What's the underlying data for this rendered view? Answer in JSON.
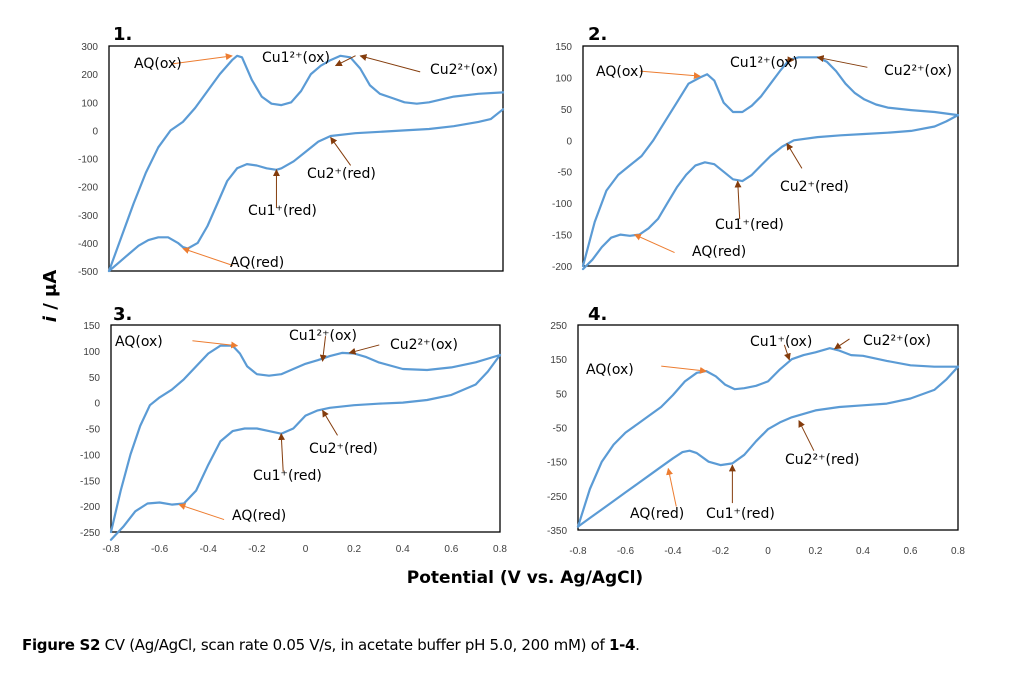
{
  "figure": {
    "xlabel": "Potential (V vs. Ag/AgCl)",
    "ylabel_italic": "i",
    "ylabel_rest": " / μA",
    "caption_bold": "Figure S2",
    "caption_text": " CV (Ag/AgCl, scan rate 0.05 V/s, in acetate buffer pH 5.0, 200 mM) of ",
    "caption_bold2": "1-4",
    "caption_end": ".",
    "colors": {
      "trace": "#5b9bd5",
      "arrow_orange": "#ed7d31",
      "arrow_brown": "#843c0c"
    }
  },
  "chart_data": [
    {
      "type": "line",
      "panel": "1.",
      "xlim": [
        -0.8,
        0.8
      ],
      "ylim": [
        -500,
        300
      ],
      "yticks": [
        300,
        200,
        100,
        0,
        -100,
        -200,
        -300,
        -400,
        -500
      ],
      "xticks": [],
      "series": [
        {
          "name": "forward",
          "x": [
            -0.8,
            -0.75,
            -0.7,
            -0.65,
            -0.6,
            -0.55,
            -0.5,
            -0.45,
            -0.4,
            -0.35,
            -0.3,
            -0.28,
            -0.26,
            -0.22,
            -0.18,
            -0.14,
            -0.1,
            -0.06,
            -0.02,
            0.02,
            0.06,
            0.1,
            0.14,
            0.18,
            0.22,
            0.26,
            0.3,
            0.35,
            0.4,
            0.45,
            0.5,
            0.55,
            0.6,
            0.7,
            0.8
          ],
          "y": [
            -500,
            -380,
            -260,
            -150,
            -60,
            0,
            30,
            80,
            140,
            200,
            250,
            265,
            260,
            180,
            120,
            95,
            90,
            100,
            140,
            200,
            230,
            250,
            265,
            260,
            220,
            160,
            130,
            115,
            100,
            95,
            100,
            110,
            120,
            130,
            135
          ]
        },
        {
          "name": "reverse",
          "x": [
            0.8,
            0.75,
            0.7,
            0.6,
            0.5,
            0.4,
            0.3,
            0.2,
            0.1,
            0.05,
            0.0,
            -0.05,
            -0.1,
            -0.12,
            -0.16,
            -0.2,
            -0.24,
            -0.28,
            -0.32,
            -0.36,
            -0.4,
            -0.44,
            -0.48,
            -0.5,
            -0.52,
            -0.56,
            -0.6,
            -0.64,
            -0.68,
            -0.72,
            -0.76,
            -0.8
          ],
          "y": [
            75,
            40,
            30,
            15,
            5,
            0,
            -5,
            -10,
            -20,
            -40,
            -75,
            -110,
            -135,
            -140,
            -135,
            -125,
            -120,
            -135,
            -180,
            -260,
            -340,
            -400,
            -420,
            -415,
            -400,
            -380,
            -380,
            -390,
            -410,
            -440,
            -470,
            -500
          ]
        }
      ],
      "annotations": [
        {
          "label": "AQ(ox)",
          "at": [
            -0.3,
            265
          ],
          "color": "orange"
        },
        {
          "label": "Cu1²⁺(ox)",
          "at": [
            0.12,
            230
          ],
          "color": "brown"
        },
        {
          "label": "Cu2²⁺(ox)",
          "at": [
            0.22,
            265
          ],
          "color": "brown"
        },
        {
          "label": "Cu2⁺(red)",
          "at": [
            0.1,
            -25
          ],
          "color": "brown"
        },
        {
          "label": "Cu1⁺(red)",
          "at": [
            -0.12,
            -140
          ],
          "color": "brown"
        },
        {
          "label": "AQ(red)",
          "at": [
            -0.5,
            -420
          ],
          "color": "orange"
        }
      ]
    },
    {
      "type": "line",
      "panel": "2.",
      "xlim": [
        -0.8,
        0.8
      ],
      "ylim": [
        -200,
        150
      ],
      "yticks": [
        150,
        100,
        50,
        0,
        -50,
        -100,
        -150,
        -200
      ],
      "xticks": [],
      "series": [
        {
          "name": "forward",
          "x": [
            -0.8,
            -0.75,
            -0.7,
            -0.65,
            -0.6,
            -0.55,
            -0.5,
            -0.45,
            -0.4,
            -0.35,
            -0.3,
            -0.27,
            -0.24,
            -0.2,
            -0.16,
            -0.12,
            -0.08,
            -0.04,
            0.0,
            0.04,
            0.08,
            0.12,
            0.16,
            0.2,
            0.24,
            0.28,
            0.32,
            0.36,
            0.4,
            0.45,
            0.5,
            0.55,
            0.6,
            0.7,
            0.8
          ],
          "y": [
            -200,
            -130,
            -80,
            -55,
            -40,
            -25,
            0,
            30,
            60,
            90,
            100,
            105,
            95,
            60,
            45,
            45,
            55,
            70,
            90,
            110,
            128,
            132,
            132,
            132,
            125,
            110,
            90,
            75,
            65,
            57,
            52,
            50,
            48,
            45,
            40
          ]
        },
        {
          "name": "reverse",
          "x": [
            0.8,
            0.75,
            0.7,
            0.6,
            0.5,
            0.4,
            0.3,
            0.2,
            0.1,
            0.05,
            0.0,
            -0.04,
            -0.08,
            -0.12,
            -0.16,
            -0.2,
            -0.24,
            -0.28,
            -0.32,
            -0.36,
            -0.4,
            -0.44,
            -0.48,
            -0.52,
            -0.56,
            -0.6,
            -0.64,
            -0.68,
            -0.72,
            -0.76,
            -0.8
          ],
          "y": [
            40,
            30,
            22,
            15,
            12,
            10,
            8,
            5,
            0,
            -10,
            -25,
            -40,
            -55,
            -65,
            -62,
            -50,
            -38,
            -35,
            -40,
            -55,
            -75,
            -100,
            -125,
            -140,
            -150,
            -152,
            -150,
            -155,
            -170,
            -190,
            -205
          ]
        }
      ],
      "annotations": [
        {
          "label": "AQ(ox)",
          "at": [
            -0.3,
            102
          ],
          "color": "orange"
        },
        {
          "label": "Cu1²⁺(ox)",
          "at": [
            0.1,
            128
          ],
          "color": "brown"
        },
        {
          "label": "Cu2²⁺(ox)",
          "at": [
            0.2,
            132
          ],
          "color": "brown"
        },
        {
          "label": "Cu2⁺(red)",
          "at": [
            0.07,
            -5
          ],
          "color": "brown"
        },
        {
          "label": "Cu1⁺(red)",
          "at": [
            -0.14,
            -65
          ],
          "color": "brown"
        },
        {
          "label": "AQ(red)",
          "at": [
            -0.58,
            -150
          ],
          "color": "orange"
        }
      ]
    },
    {
      "type": "line",
      "panel": "3.",
      "xlim": [
        -0.8,
        0.8
      ],
      "ylim": [
        -250,
        150
      ],
      "yticks": [
        150,
        100,
        50,
        0,
        -50,
        -100,
        -150,
        -200,
        -250
      ],
      "xticks": [
        -0.8,
        -0.6,
        -0.4,
        -0.2,
        0,
        0.2,
        0.4,
        0.6,
        0.8
      ],
      "series": [
        {
          "name": "forward",
          "x": [
            -0.8,
            -0.76,
            -0.72,
            -0.68,
            -0.64,
            -0.6,
            -0.55,
            -0.5,
            -0.45,
            -0.4,
            -0.35,
            -0.3,
            -0.27,
            -0.24,
            -0.2,
            -0.15,
            -0.1,
            -0.05,
            0.0,
            0.05,
            0.1,
            0.15,
            0.2,
            0.25,
            0.3,
            0.4,
            0.5,
            0.6,
            0.7,
            0.8
          ],
          "y": [
            -250,
            -170,
            -100,
            -45,
            -5,
            10,
            25,
            45,
            70,
            95,
            110,
            110,
            95,
            70,
            55,
            52,
            55,
            65,
            75,
            82,
            90,
            96,
            95,
            88,
            78,
            65,
            63,
            68,
            78,
            92
          ]
        },
        {
          "name": "reverse",
          "x": [
            0.8,
            0.75,
            0.7,
            0.6,
            0.5,
            0.4,
            0.3,
            0.2,
            0.1,
            0.05,
            0.0,
            -0.05,
            -0.1,
            -0.15,
            -0.2,
            -0.25,
            -0.3,
            -0.35,
            -0.4,
            -0.45,
            -0.5,
            -0.55,
            -0.6,
            -0.65,
            -0.7,
            -0.75,
            -0.8
          ],
          "y": [
            92,
            60,
            35,
            15,
            5,
            0,
            -2,
            -5,
            -10,
            -15,
            -25,
            -50,
            -60,
            -55,
            -50,
            -50,
            -55,
            -75,
            -120,
            -170,
            -195,
            -197,
            -193,
            -195,
            -210,
            -240,
            -265
          ]
        }
      ],
      "annotations": [
        {
          "label": "AQ(ox)",
          "at": [
            -0.28,
            110
          ],
          "color": "orange"
        },
        {
          "label": "Cu1²⁺(ox)",
          "at": [
            0.07,
            80
          ],
          "color": "brown"
        },
        {
          "label": "Cu2²⁺(ox)",
          "at": [
            0.18,
            96
          ],
          "color": "brown"
        },
        {
          "label": "Cu2⁺(red)",
          "at": [
            0.07,
            -15
          ],
          "color": "brown"
        },
        {
          "label": "Cu1⁺(red)",
          "at": [
            -0.1,
            -60
          ],
          "color": "brown"
        },
        {
          "label": "AQ(red)",
          "at": [
            -0.52,
            -197
          ],
          "color": "orange"
        }
      ]
    },
    {
      "type": "line",
      "panel": "4.",
      "xlim": [
        -0.8,
        0.8
      ],
      "ylim": [
        -350,
        250
      ],
      "yticks": [
        250,
        150,
        50,
        -50,
        -150,
        -250,
        -350
      ],
      "xticks": [
        -0.8,
        -0.6,
        -0.4,
        -0.2,
        0,
        0.2,
        0.4,
        0.6,
        0.8
      ],
      "series": [
        {
          "name": "forward",
          "x": [
            -0.8,
            -0.75,
            -0.7,
            -0.65,
            -0.6,
            -0.55,
            -0.5,
            -0.45,
            -0.4,
            -0.35,
            -0.3,
            -0.26,
            -0.22,
            -0.18,
            -0.14,
            -0.1,
            -0.05,
            0.0,
            0.05,
            0.1,
            0.15,
            0.2,
            0.26,
            0.3,
            0.35,
            0.4,
            0.5,
            0.6,
            0.7,
            0.8
          ],
          "y": [
            -340,
            -230,
            -150,
            -100,
            -65,
            -40,
            -15,
            10,
            45,
            85,
            110,
            115,
            100,
            75,
            62,
            65,
            72,
            85,
            120,
            150,
            162,
            170,
            182,
            175,
            162,
            160,
            145,
            132,
            128,
            128
          ]
        },
        {
          "name": "reverse",
          "x": [
            0.8,
            0.75,
            0.7,
            0.6,
            0.5,
            0.4,
            0.3,
            0.2,
            0.1,
            0.05,
            0.0,
            -0.05,
            -0.1,
            -0.15,
            -0.2,
            -0.25,
            -0.3,
            -0.33,
            -0.36,
            -0.4,
            -0.45,
            -0.5,
            -0.55,
            -0.6,
            -0.65,
            -0.7,
            -0.75,
            -0.8
          ],
          "y": [
            128,
            90,
            60,
            35,
            20,
            15,
            10,
            0,
            -20,
            -35,
            -55,
            -90,
            -130,
            -155,
            -160,
            -150,
            -125,
            -118,
            -122,
            -140,
            -165,
            -190,
            -215,
            -240,
            -265,
            -290,
            -315,
            -340
          ]
        }
      ],
      "annotations": [
        {
          "label": "AQ(ox)",
          "at": [
            -0.26,
            115
          ],
          "color": "orange"
        },
        {
          "label": "Cu1⁺(ox)",
          "at": [
            0.09,
            148
          ],
          "color": "brown"
        },
        {
          "label": "Cu2²⁺(ox)",
          "at": [
            0.28,
            180
          ],
          "color": "brown"
        },
        {
          "label": "Cu2²⁺(red)",
          "at": [
            0.13,
            -30
          ],
          "color": "brown"
        },
        {
          "label": "Cu1⁺(red)",
          "at": [
            -0.15,
            -160
          ],
          "color": "brown"
        },
        {
          "label": "AQ(red)",
          "at": [
            -0.42,
            -170
          ],
          "color": "orange"
        }
      ]
    }
  ]
}
